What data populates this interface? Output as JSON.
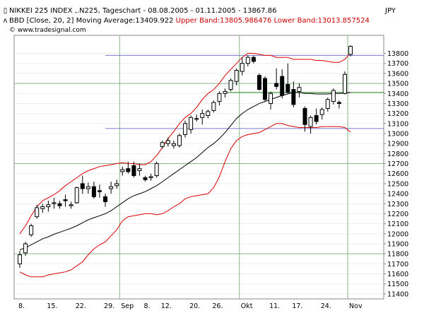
{
  "header": {
    "ticker_line": "NIKKEI 225 INDEX ,.N225, Tageschart - 08.08.2005 - 01.11.2005 - 13867.86",
    "indicator_prefix": "BBD [Close, 20, 2] Moving Average:13409.922",
    "upper_band_text": "Upper Band:13805.986476",
    "lower_band_text": "Lower Band:13013.857524",
    "source": "© www.tradesignal.com",
    "currency": "JPY"
  },
  "colors": {
    "band": "#dd0000",
    "ma": "#000000",
    "grid_v": "#88b888",
    "grid_h": "#dddddd",
    "hline_blue": "#7a7acc",
    "hline_green": "#228822",
    "frame": "#888888"
  },
  "chart_data": {
    "type": "candlestick",
    "title": "NIKKEI 225 INDEX ,.N225, Tageschart - 08.08.2005 - 01.11.2005 - 13867.86",
    "ylim": [
      11350,
      13980
    ],
    "yticks": [
      11400,
      11500,
      11600,
      11700,
      11800,
      11900,
      12000,
      12100,
      12200,
      12300,
      12400,
      12500,
      12600,
      12700,
      12800,
      12900,
      13000,
      13100,
      13200,
      13300,
      13400,
      13500,
      13600,
      13700,
      13800
    ],
    "x_labels": [
      {
        "i": 0,
        "label": "8."
      },
      {
        "i": 5,
        "label": "15."
      },
      {
        "i": 10,
        "label": "22."
      },
      {
        "i": 15,
        "label": "29."
      },
      {
        "i": 18,
        "label": "Sep"
      },
      {
        "i": 22,
        "label": "8."
      },
      {
        "i": 25,
        "label": "12."
      },
      {
        "i": 30,
        "label": "20."
      },
      {
        "i": 34,
        "label": "26."
      },
      {
        "i": 39,
        "label": "Okt"
      },
      {
        "i": 44,
        "label": "11."
      },
      {
        "i": 48,
        "label": "17."
      },
      {
        "i": 53,
        "label": "24."
      },
      {
        "i": 58,
        "label": "Nov"
      }
    ],
    "grid_v_at": [
      18,
      39,
      58
    ],
    "grid_h_at": [
      11800,
      12700,
      13500
    ],
    "horizontal_lines": [
      {
        "value": 13780,
        "color": "blue"
      },
      {
        "value": 13050,
        "color": "blue"
      },
      {
        "value": 13410,
        "color": "green"
      }
    ],
    "candles": [
      {
        "o": 11700,
        "h": 11830,
        "l": 11660,
        "c": 11790
      },
      {
        "o": 11810,
        "h": 11920,
        "l": 11780,
        "c": 11900
      },
      {
        "o": 11990,
        "h": 12100,
        "l": 11970,
        "c": 12080
      },
      {
        "o": 12170,
        "h": 12290,
        "l": 12150,
        "c": 12260
      },
      {
        "o": 12250,
        "h": 12300,
        "l": 12210,
        "c": 12270
      },
      {
        "o": 12270,
        "h": 12330,
        "l": 12220,
        "c": 12290
      },
      {
        "o": 12300,
        "h": 12360,
        "l": 12250,
        "c": 12310
      },
      {
        "o": 12300,
        "h": 12330,
        "l": 12250,
        "c": 12280
      },
      {
        "o": 12340,
        "h": 12390,
        "l": 12270,
        "c": 12330
      },
      {
        "o": 12280,
        "h": 12320,
        "l": 12250,
        "c": 12290
      },
      {
        "o": 12310,
        "h": 12470,
        "l": 12300,
        "c": 12460
      },
      {
        "o": 12500,
        "h": 12580,
        "l": 12400,
        "c": 12450
      },
      {
        "o": 12450,
        "h": 12510,
        "l": 12400,
        "c": 12470
      },
      {
        "o": 12470,
        "h": 12520,
        "l": 12350,
        "c": 12370
      },
      {
        "o": 12430,
        "h": 12490,
        "l": 12360,
        "c": 12420
      },
      {
        "o": 12370,
        "h": 12400,
        "l": 12270,
        "c": 12320
      },
      {
        "o": 12450,
        "h": 12520,
        "l": 12400,
        "c": 12470
      },
      {
        "o": 12480,
        "h": 12540,
        "l": 12450,
        "c": 12500
      },
      {
        "o": 12620,
        "h": 12670,
        "l": 12580,
        "c": 12640
      },
      {
        "o": 12650,
        "h": 12720,
        "l": 12600,
        "c": 12620
      },
      {
        "o": 12680,
        "h": 12720,
        "l": 12560,
        "c": 12580
      },
      {
        "o": 12630,
        "h": 12700,
        "l": 12580,
        "c": 12650
      },
      {
        "o": 12560,
        "h": 12580,
        "l": 12520,
        "c": 12540
      },
      {
        "o": 12560,
        "h": 12600,
        "l": 12530,
        "c": 12570
      },
      {
        "o": 12580,
        "h": 12720,
        "l": 12560,
        "c": 12700
      },
      {
        "o": 12870,
        "h": 12930,
        "l": 12850,
        "c": 12910
      },
      {
        "o": 12900,
        "h": 12960,
        "l": 12870,
        "c": 12930
      },
      {
        "o": 12880,
        "h": 12930,
        "l": 12850,
        "c": 12900
      },
      {
        "o": 12880,
        "h": 13000,
        "l": 12860,
        "c": 12980
      },
      {
        "o": 12990,
        "h": 13130,
        "l": 12960,
        "c": 13100
      },
      {
        "o": 13040,
        "h": 13180,
        "l": 13000,
        "c": 13160
      },
      {
        "o": 13150,
        "h": 13190,
        "l": 13120,
        "c": 13150
      },
      {
        "o": 13160,
        "h": 13240,
        "l": 13090,
        "c": 13200
      },
      {
        "o": 13180,
        "h": 13240,
        "l": 13150,
        "c": 13220
      },
      {
        "o": 13230,
        "h": 13330,
        "l": 13210,
        "c": 13310
      },
      {
        "o": 13320,
        "h": 13420,
        "l": 13280,
        "c": 13400
      },
      {
        "o": 13400,
        "h": 13450,
        "l": 13360,
        "c": 13420
      },
      {
        "o": 13440,
        "h": 13550,
        "l": 13420,
        "c": 13530
      },
      {
        "o": 13520,
        "h": 13650,
        "l": 13480,
        "c": 13630
      },
      {
        "o": 13620,
        "h": 13760,
        "l": 13580,
        "c": 13700
      },
      {
        "o": 13700,
        "h": 13780,
        "l": 13670,
        "c": 13760
      },
      {
        "o": 13760,
        "h": 13780,
        "l": 13700,
        "c": 13720
      },
      {
        "o": 13580,
        "h": 13600,
        "l": 13430,
        "c": 13440
      },
      {
        "o": 13550,
        "h": 13570,
        "l": 13320,
        "c": 13340
      },
      {
        "o": 13300,
        "h": 13420,
        "l": 13240,
        "c": 13400
      },
      {
        "o": 13500,
        "h": 13650,
        "l": 13440,
        "c": 13470
      },
      {
        "o": 13570,
        "h": 13640,
        "l": 13350,
        "c": 13380
      },
      {
        "o": 13490,
        "h": 13700,
        "l": 13400,
        "c": 13410
      },
      {
        "o": 13440,
        "h": 13520,
        "l": 13260,
        "c": 13290
      },
      {
        "o": 13420,
        "h": 13500,
        "l": 13360,
        "c": 13460
      },
      {
        "o": 13250,
        "h": 13270,
        "l": 13020,
        "c": 13090
      },
      {
        "o": 13070,
        "h": 13180,
        "l": 13000,
        "c": 13160
      },
      {
        "o": 13180,
        "h": 13250,
        "l": 13090,
        "c": 13120
      },
      {
        "o": 13190,
        "h": 13260,
        "l": 13140,
        "c": 13240
      },
      {
        "o": 13250,
        "h": 13360,
        "l": 13220,
        "c": 13340
      },
      {
        "o": 13320,
        "h": 13450,
        "l": 13290,
        "c": 13430
      },
      {
        "o": 13310,
        "h": 13330,
        "l": 13250,
        "c": 13300
      },
      {
        "o": 13400,
        "h": 13620,
        "l": 13390,
        "c": 13590
      },
      {
        "o": 13790,
        "h": 13880,
        "l": 13770,
        "c": 13870
      }
    ],
    "ma": [
      11840,
      11860,
      11890,
      11920,
      11950,
      11970,
      11995,
      12015,
      12035,
      12055,
      12080,
      12110,
      12140,
      12160,
      12180,
      12200,
      12230,
      12270,
      12310,
      12350,
      12380,
      12400,
      12420,
      12450,
      12480,
      12520,
      12560,
      12600,
      12640,
      12680,
      12720,
      12760,
      12810,
      12860,
      12900,
      12950,
      13010,
      13080,
      13150,
      13200,
      13240,
      13270,
      13300,
      13320,
      13340,
      13360,
      13380,
      13395,
      13410,
      13410,
      13400,
      13400,
      13395,
      13395,
      13395,
      13400,
      13400,
      13405,
      13409.922
    ],
    "upper": [
      12000,
      12080,
      12180,
      12270,
      12330,
      12360,
      12390,
      12430,
      12480,
      12520,
      12560,
      12600,
      12630,
      12650,
      12670,
      12680,
      12690,
      12700,
      12710,
      12700,
      12700,
      12690,
      12690,
      12720,
      12780,
      12860,
      12950,
      13020,
      13100,
      13160,
      13200,
      13260,
      13340,
      13400,
      13440,
      13500,
      13580,
      13640,
      13700,
      13760,
      13800,
      13800,
      13790,
      13780,
      13780,
      13760,
      13760,
      13760,
      13740,
      13740,
      13740,
      13740,
      13730,
      13730,
      13720,
      13710,
      13710,
      13740,
      13805.986476
    ],
    "lower": [
      11620,
      11590,
      11570,
      11570,
      11570,
      11590,
      11600,
      11610,
      11620,
      11640,
      11680,
      11720,
      11790,
      11850,
      11890,
      11920,
      11980,
      12040,
      12130,
      12170,
      12180,
      12190,
      12200,
      12200,
      12190,
      12200,
      12230,
      12270,
      12300,
      12350,
      12370,
      12380,
      12390,
      12400,
      12460,
      12570,
      12720,
      12850,
      12930,
      12970,
      12990,
      13000,
      13010,
      13040,
      13070,
      13100,
      13100,
      13080,
      13070,
      13060,
      13060,
      13060,
      13060,
      13070,
      13070,
      13070,
      13070,
      13060,
      13013.857524
    ]
  }
}
